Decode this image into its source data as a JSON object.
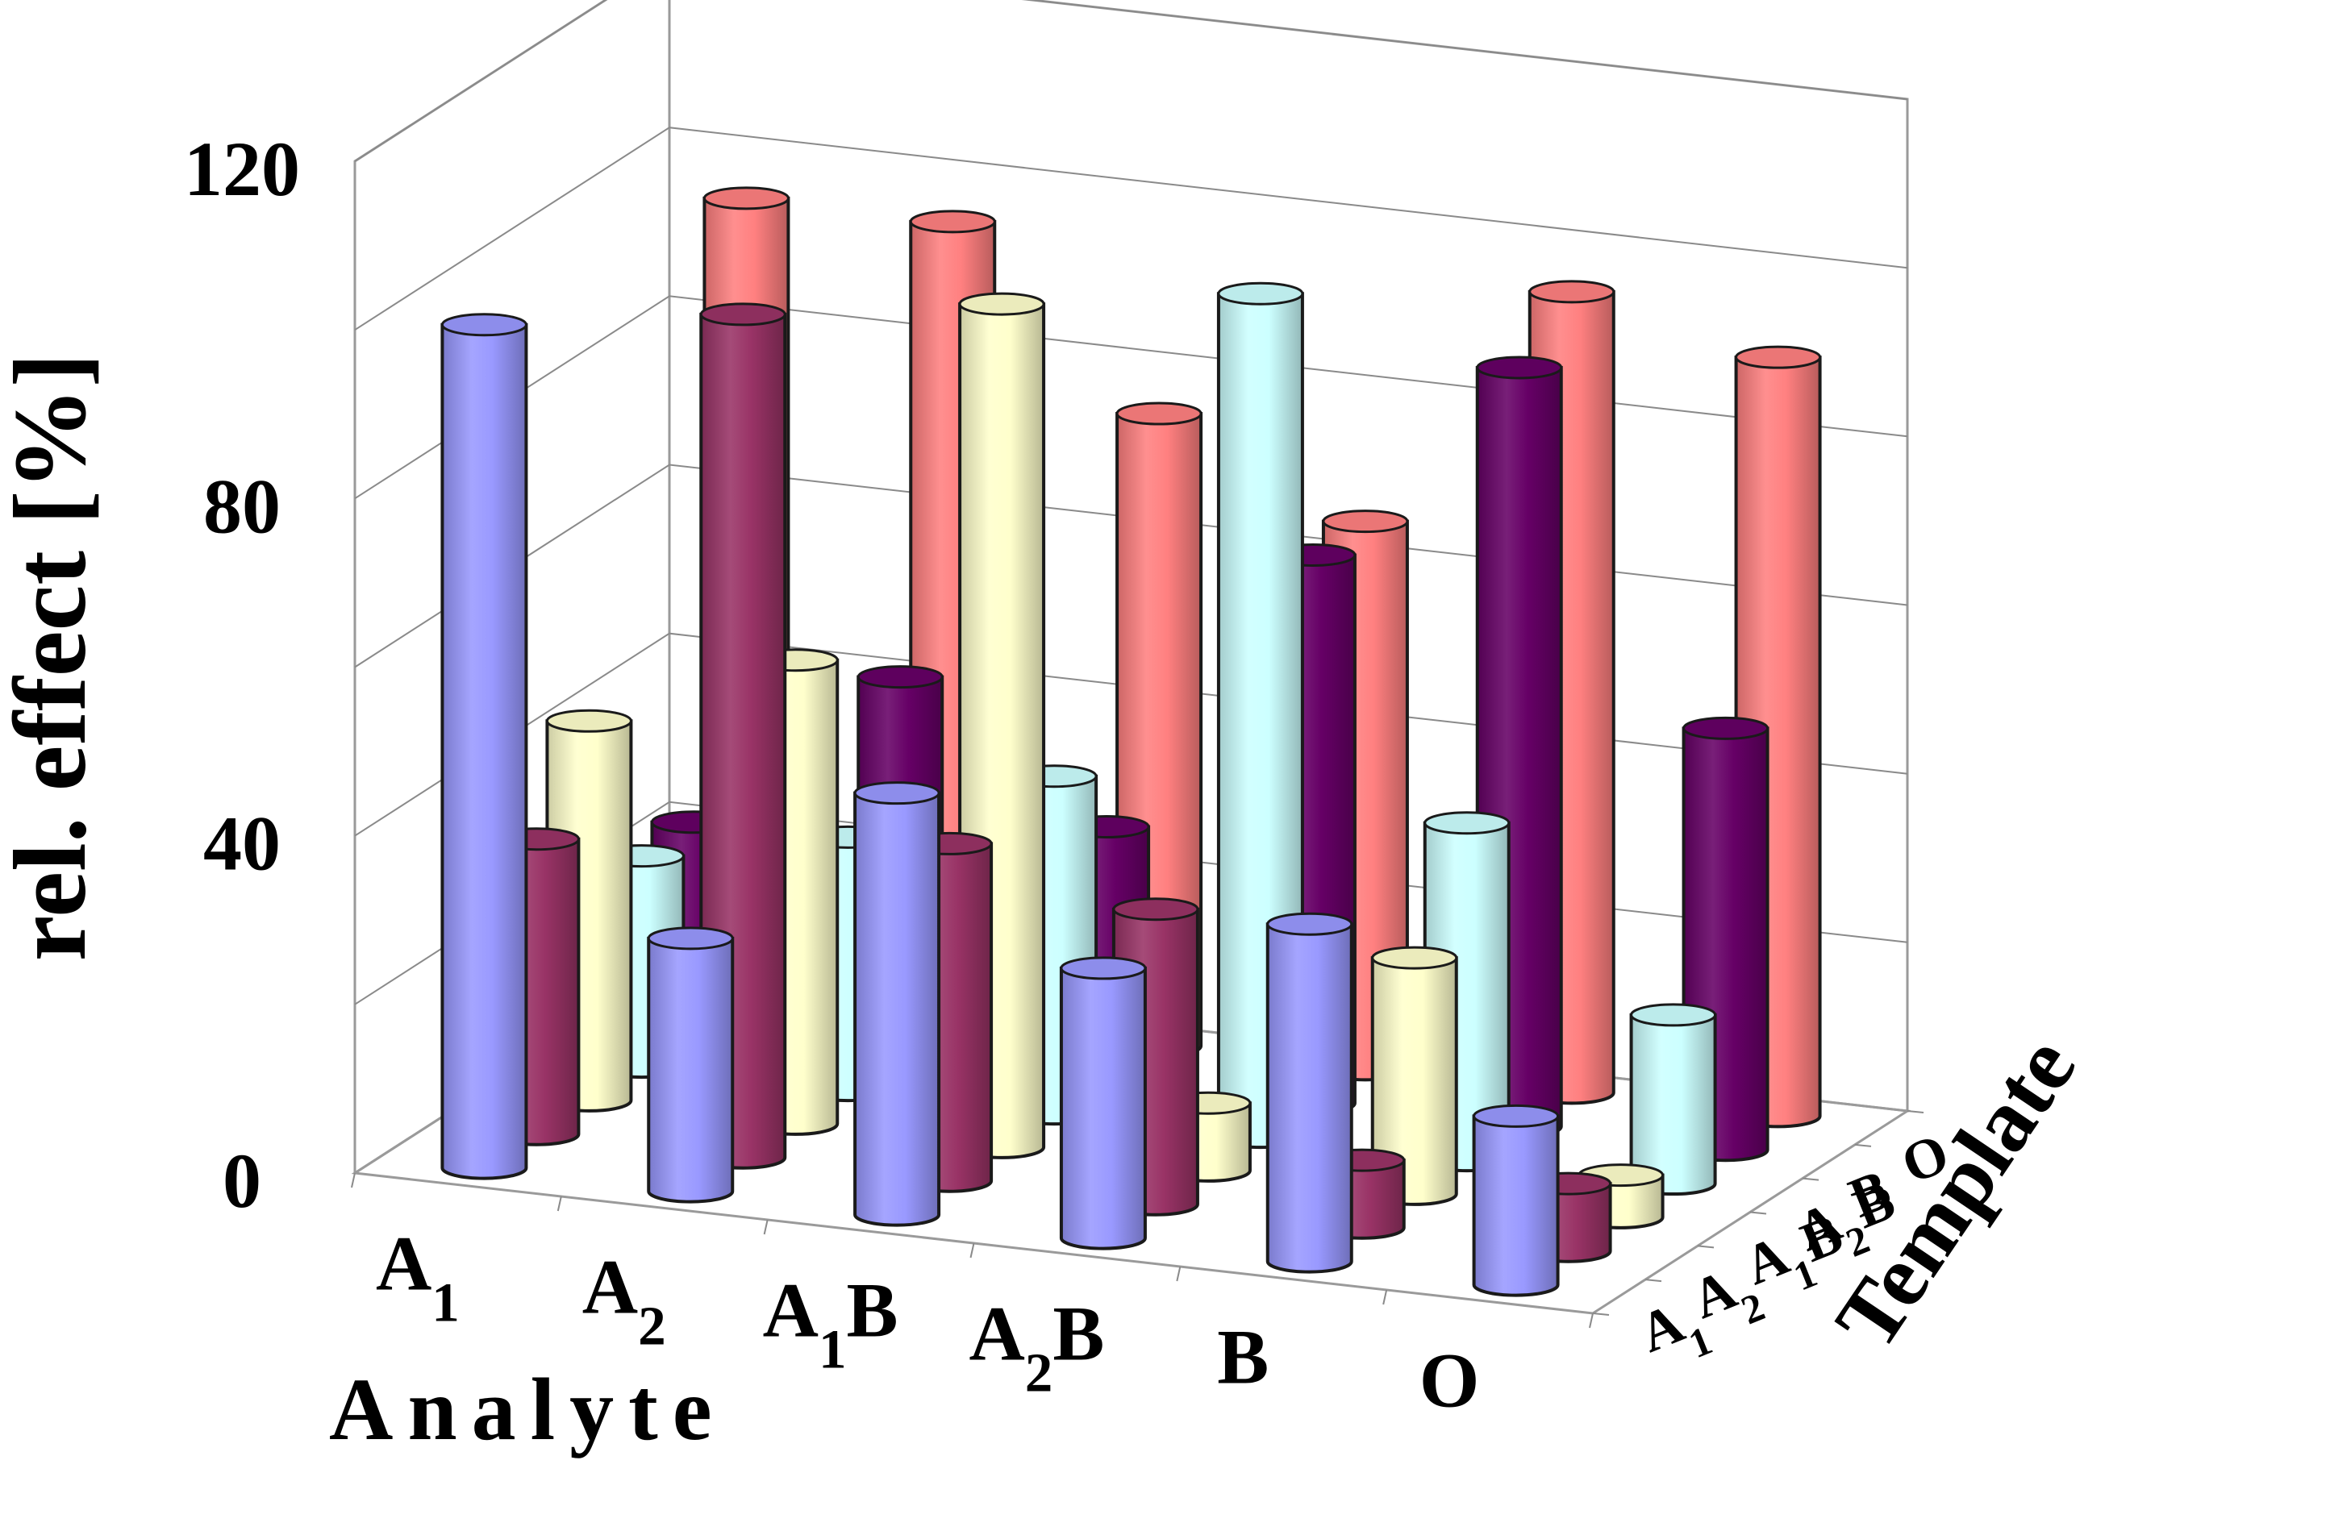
{
  "chart_data": {
    "type": "bar",
    "subtype": "3d-cylinder",
    "title": "",
    "ylabel": "rel. effect [%]",
    "xlabel": "Analyte",
    "zlabel": "Template",
    "ylim": [
      0,
      120
    ],
    "yticks": [
      "0",
      "40",
      "80",
      "120"
    ],
    "analytes": [
      {
        "base": "A",
        "sub": "1",
        "tail": ""
      },
      {
        "base": "A",
        "sub": "2",
        "tail": ""
      },
      {
        "base": "A",
        "sub": "1",
        "tail": "B"
      },
      {
        "base": "A",
        "sub": "2",
        "tail": "B"
      },
      {
        "base": "B",
        "sub": "",
        "tail": ""
      },
      {
        "base": "O",
        "sub": "",
        "tail": ""
      }
    ],
    "series": [
      {
        "name": "A1",
        "label": {
          "base": "A",
          "sub": "1",
          "tail": ""
        },
        "color": "#9999ff",
        "values": [
          100,
          30,
          50,
          32,
          40,
          20
        ]
      },
      {
        "name": "A2",
        "label": {
          "base": "A",
          "sub": "2",
          "tail": ""
        },
        "color": "#993366",
        "values": [
          35,
          100,
          40,
          35,
          8,
          8
        ]
      },
      {
        "name": "A1B",
        "label": {
          "base": "A",
          "sub": "1",
          "tail": "B"
        },
        "color": "#ffffcc",
        "values": [
          45,
          55,
          100,
          8,
          28,
          5
        ]
      },
      {
        "name": "A2B",
        "label": {
          "base": "A",
          "sub": "2",
          "tail": "B"
        },
        "color": "#ccffff",
        "values": [
          25,
          30,
          40,
          100,
          40,
          20
        ]
      },
      {
        "name": "B",
        "label": {
          "base": "B",
          "sub": "",
          "tail": ""
        },
        "color": "#660066",
        "values": [
          25,
          45,
          30,
          65,
          90,
          50
        ]
      },
      {
        "name": "O",
        "label": {
          "base": "O",
          "sub": "",
          "tail": ""
        },
        "color": "#ff8080",
        "values": [
          95,
          95,
          75,
          65,
          95,
          90
        ]
      }
    ]
  }
}
